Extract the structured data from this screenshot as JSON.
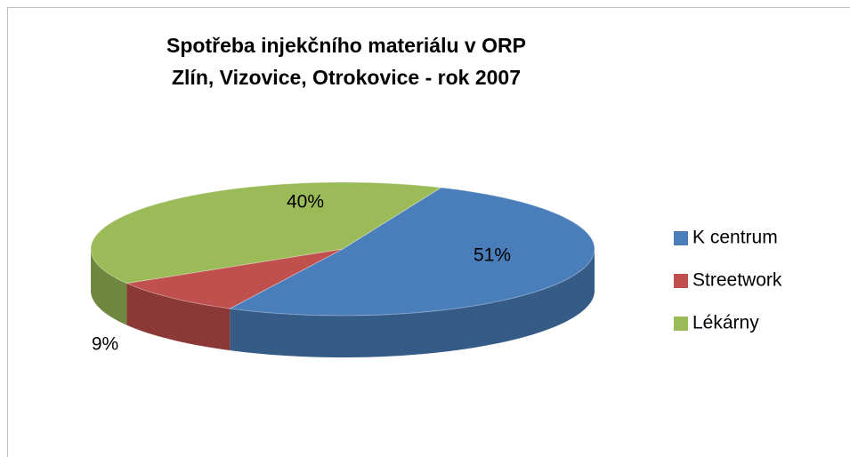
{
  "chart_data": {
    "type": "pie",
    "title": [
      "Spotřeba injekčního materiálu v ORP",
      "Zlín, Vizovice, Otrokovice  - rok 2007"
    ],
    "categories": [
      "K centrum",
      "Streetwork",
      "Lékárny"
    ],
    "values": [
      51,
      9,
      40
    ],
    "value_labels": [
      "51%",
      "9%",
      "40%"
    ],
    "colors": [
      "#4a7ebb",
      "#c0504d",
      "#9bbb59"
    ],
    "legend": "right"
  }
}
